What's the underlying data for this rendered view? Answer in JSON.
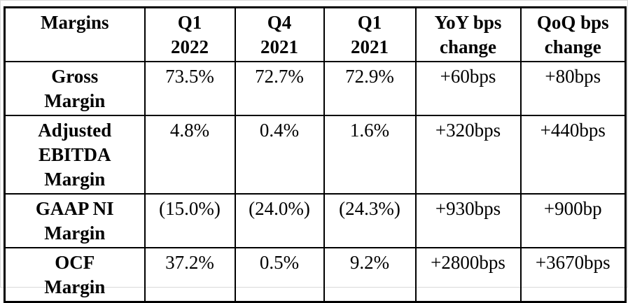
{
  "chart_data": {
    "type": "table",
    "title": "Margins by quarter with YoY and QoQ bps change",
    "columns": [
      "Margins",
      "Q1\n2022",
      "Q4\n2021",
      "Q1\n2021",
      "YoY bps\nchange",
      "QoQ bps\nchange"
    ],
    "rows": [
      {
        "label": "Gross\nMargin",
        "values": [
          "73.5%",
          "72.7%",
          "72.9%",
          "+60bps",
          "+80bps"
        ],
        "numeric": {
          "q1_2022_pct": 73.5,
          "q4_2021_pct": 72.7,
          "q1_2021_pct": 72.9,
          "yoy_bps": 60,
          "qoq_bps": 80
        }
      },
      {
        "label": "Adjusted\nEBITDA\nMargin",
        "values": [
          "4.8%",
          "0.4%",
          "1.6%",
          "+320bps",
          "+440bps"
        ],
        "numeric": {
          "q1_2022_pct": 4.8,
          "q4_2021_pct": 0.4,
          "q1_2021_pct": 1.6,
          "yoy_bps": 320,
          "qoq_bps": 440
        }
      },
      {
        "label": "GAAP NI\nMargin",
        "values": [
          "(15.0%)",
          "(24.0%)",
          "(24.3%)",
          "+930bps",
          "+900bp"
        ],
        "numeric": {
          "q1_2022_pct": -15.0,
          "q4_2021_pct": -24.0,
          "q1_2021_pct": -24.3,
          "yoy_bps": 930,
          "qoq_bps": 900
        }
      },
      {
        "label": "OCF\nMargin",
        "values": [
          "37.2%",
          "0.5%",
          "9.2%",
          "+2800bps",
          "+3670bps"
        ],
        "numeric": {
          "q1_2022_pct": 37.2,
          "q4_2021_pct": 0.5,
          "q1_2021_pct": 9.2,
          "yoy_bps": 2800,
          "qoq_bps": 3670
        }
      }
    ],
    "colors": {
      "text": "#000000",
      "border": "#000000",
      "background": "#ffffff"
    }
  }
}
